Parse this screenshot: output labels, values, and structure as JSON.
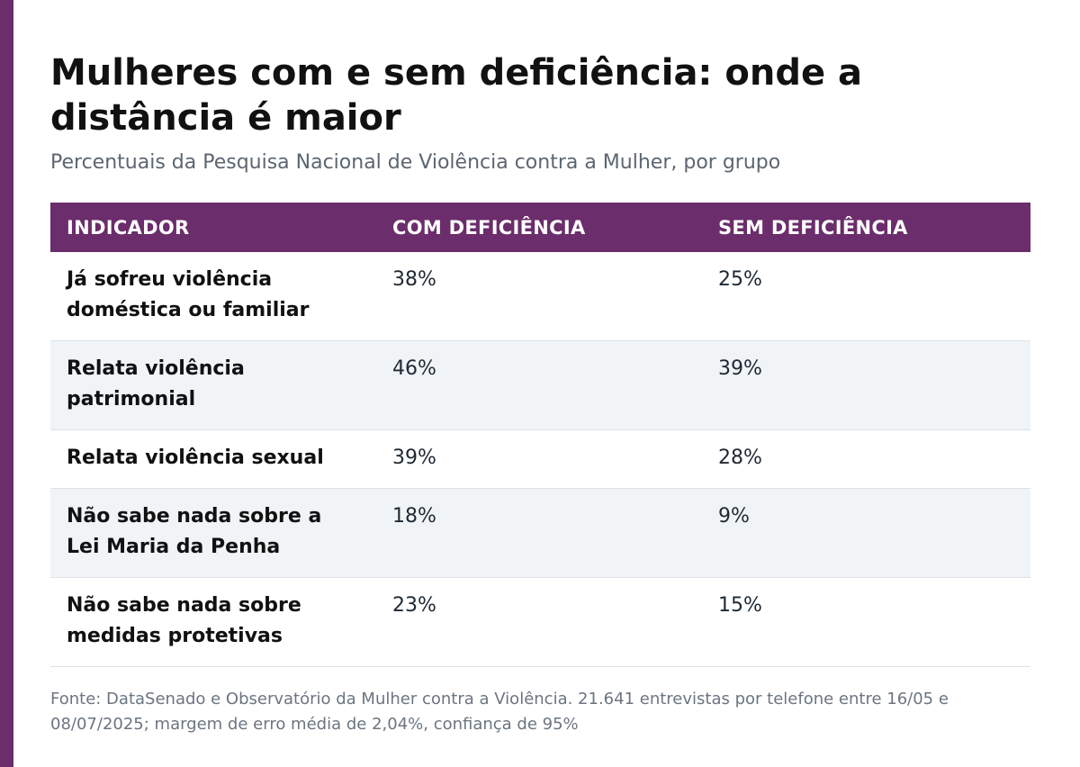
{
  "accent_color": "#6b2d6b",
  "stripe_color": "#f0f4f7",
  "chart_data": {
    "type": "table",
    "title": "Mulheres com e sem deficiência: onde a distância é maior",
    "subtitle": "Percentuais da Pesquisa Nacional de Violência contra a Mulher, por grupo",
    "columns": [
      "INDICADOR",
      "COM DEFICIÊNCIA",
      "SEM DEFICIÊNCIA"
    ],
    "rows": [
      {
        "indicator": "Já sofreu violência doméstica ou familiar",
        "com": "38%",
        "sem": "25%"
      },
      {
        "indicator": "Relata violência patrimonial",
        "com": "46%",
        "sem": "39%"
      },
      {
        "indicator": "Relata violência sexual",
        "com": "39%",
        "sem": "28%"
      },
      {
        "indicator": "Não sabe nada sobre a Lei Maria da Penha",
        "com": "18%",
        "sem": "9%"
      },
      {
        "indicator": "Não sabe nada sobre medidas protetivas",
        "com": "23%",
        "sem": "15%"
      }
    ],
    "source": "Fonte: DataSenado e Observatório da Mulher contra a Violência. 21.641 entrevistas por telefone entre 16/05 e 08/07/2025; margem de erro média de 2,04%, confiança de 95%"
  }
}
